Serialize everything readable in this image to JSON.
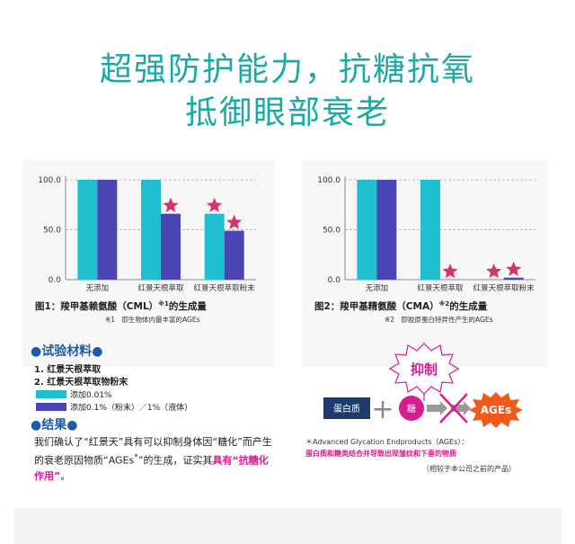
{
  "headline": {
    "line1": "超强防护能力，抗糖抗氧",
    "line2": "抵御眼部衰老"
  },
  "colors": {
    "teal": "#1fbfcf",
    "purple": "#4b44b3",
    "star": "#d6326e",
    "headline": "#1aa9a6",
    "section": "#1d5aa5",
    "highlight": "#d61c8f"
  },
  "chart_data": [
    {
      "type": "bar",
      "title": "图1：羧甲基赖氨酸（CML）",
      "title_note": "※1",
      "title_suffix": "的生成量",
      "footnote": "※1　即生物体内最丰富的AGEs",
      "categories": [
        "无添加",
        "红景天根萃取",
        "红景天根萃取粉末"
      ],
      "series": [
        {
          "values": [
            100,
            100,
            66
          ],
          "color_key": "teal"
        },
        {
          "values": [
            100,
            66,
            49
          ],
          "color_key": "purple"
        }
      ],
      "stars": [
        [
          false,
          false
        ],
        [
          false,
          true
        ],
        [
          true,
          true
        ]
      ],
      "yticks": [
        "0.0",
        "50.0",
        "100.0"
      ],
      "ylim": [
        0,
        100
      ],
      "grid": true
    },
    {
      "type": "bar",
      "title": "图2：羧甲基精氨酸（CMA）",
      "title_note": "※2",
      "title_suffix": "的生成量",
      "footnote": "※2　即胶原蛋白特异性产生的AGEs",
      "categories": [
        "无添加",
        "红景天根萃取",
        "红景天根萃取粉末"
      ],
      "series": [
        {
          "values": [
            100,
            100,
            0
          ],
          "color_key": "teal"
        },
        {
          "values": [
            100,
            0,
            2
          ],
          "color_key": "purple"
        }
      ],
      "stars": [
        [
          false,
          false
        ],
        [
          false,
          true
        ],
        [
          true,
          true
        ]
      ],
      "yticks": [
        "0.0",
        "50.0",
        "100.0"
      ],
      "ylim": [
        0,
        100
      ],
      "grid": true
    }
  ],
  "materials": {
    "title": "●试验材料●",
    "items": [
      "1. 红景天根萃取",
      "2. 红景天根萃取物粉末"
    ],
    "legend": [
      {
        "color_key": "teal",
        "label": "添加0.01%"
      },
      {
        "color_key": "purple",
        "label": "添加0.1%（粉末）／1%（液体）"
      }
    ]
  },
  "results": {
    "title": "●结果●",
    "text_plain": "我们确认了“红景天”具有可以抑制身体因“糖化”而产生的衰老原因物质“AGEs",
    "note_mark": "*",
    "text_plain2": "”的生成，证实其",
    "text_highlight": "具有“抗糖化作用”",
    "text_end": "。"
  },
  "diagram": {
    "inhibit": "抑制",
    "protein": "蛋白质",
    "plus": "+",
    "sugar": "糖",
    "ages": "AGEs",
    "note1": "＊Advanced Glycation Endproducts（AGEs）：",
    "note2": "蛋白质和糖类结合并导致出现皱纹和下垂的物质",
    "note3": "（相较于本公司之前的产品）"
  }
}
